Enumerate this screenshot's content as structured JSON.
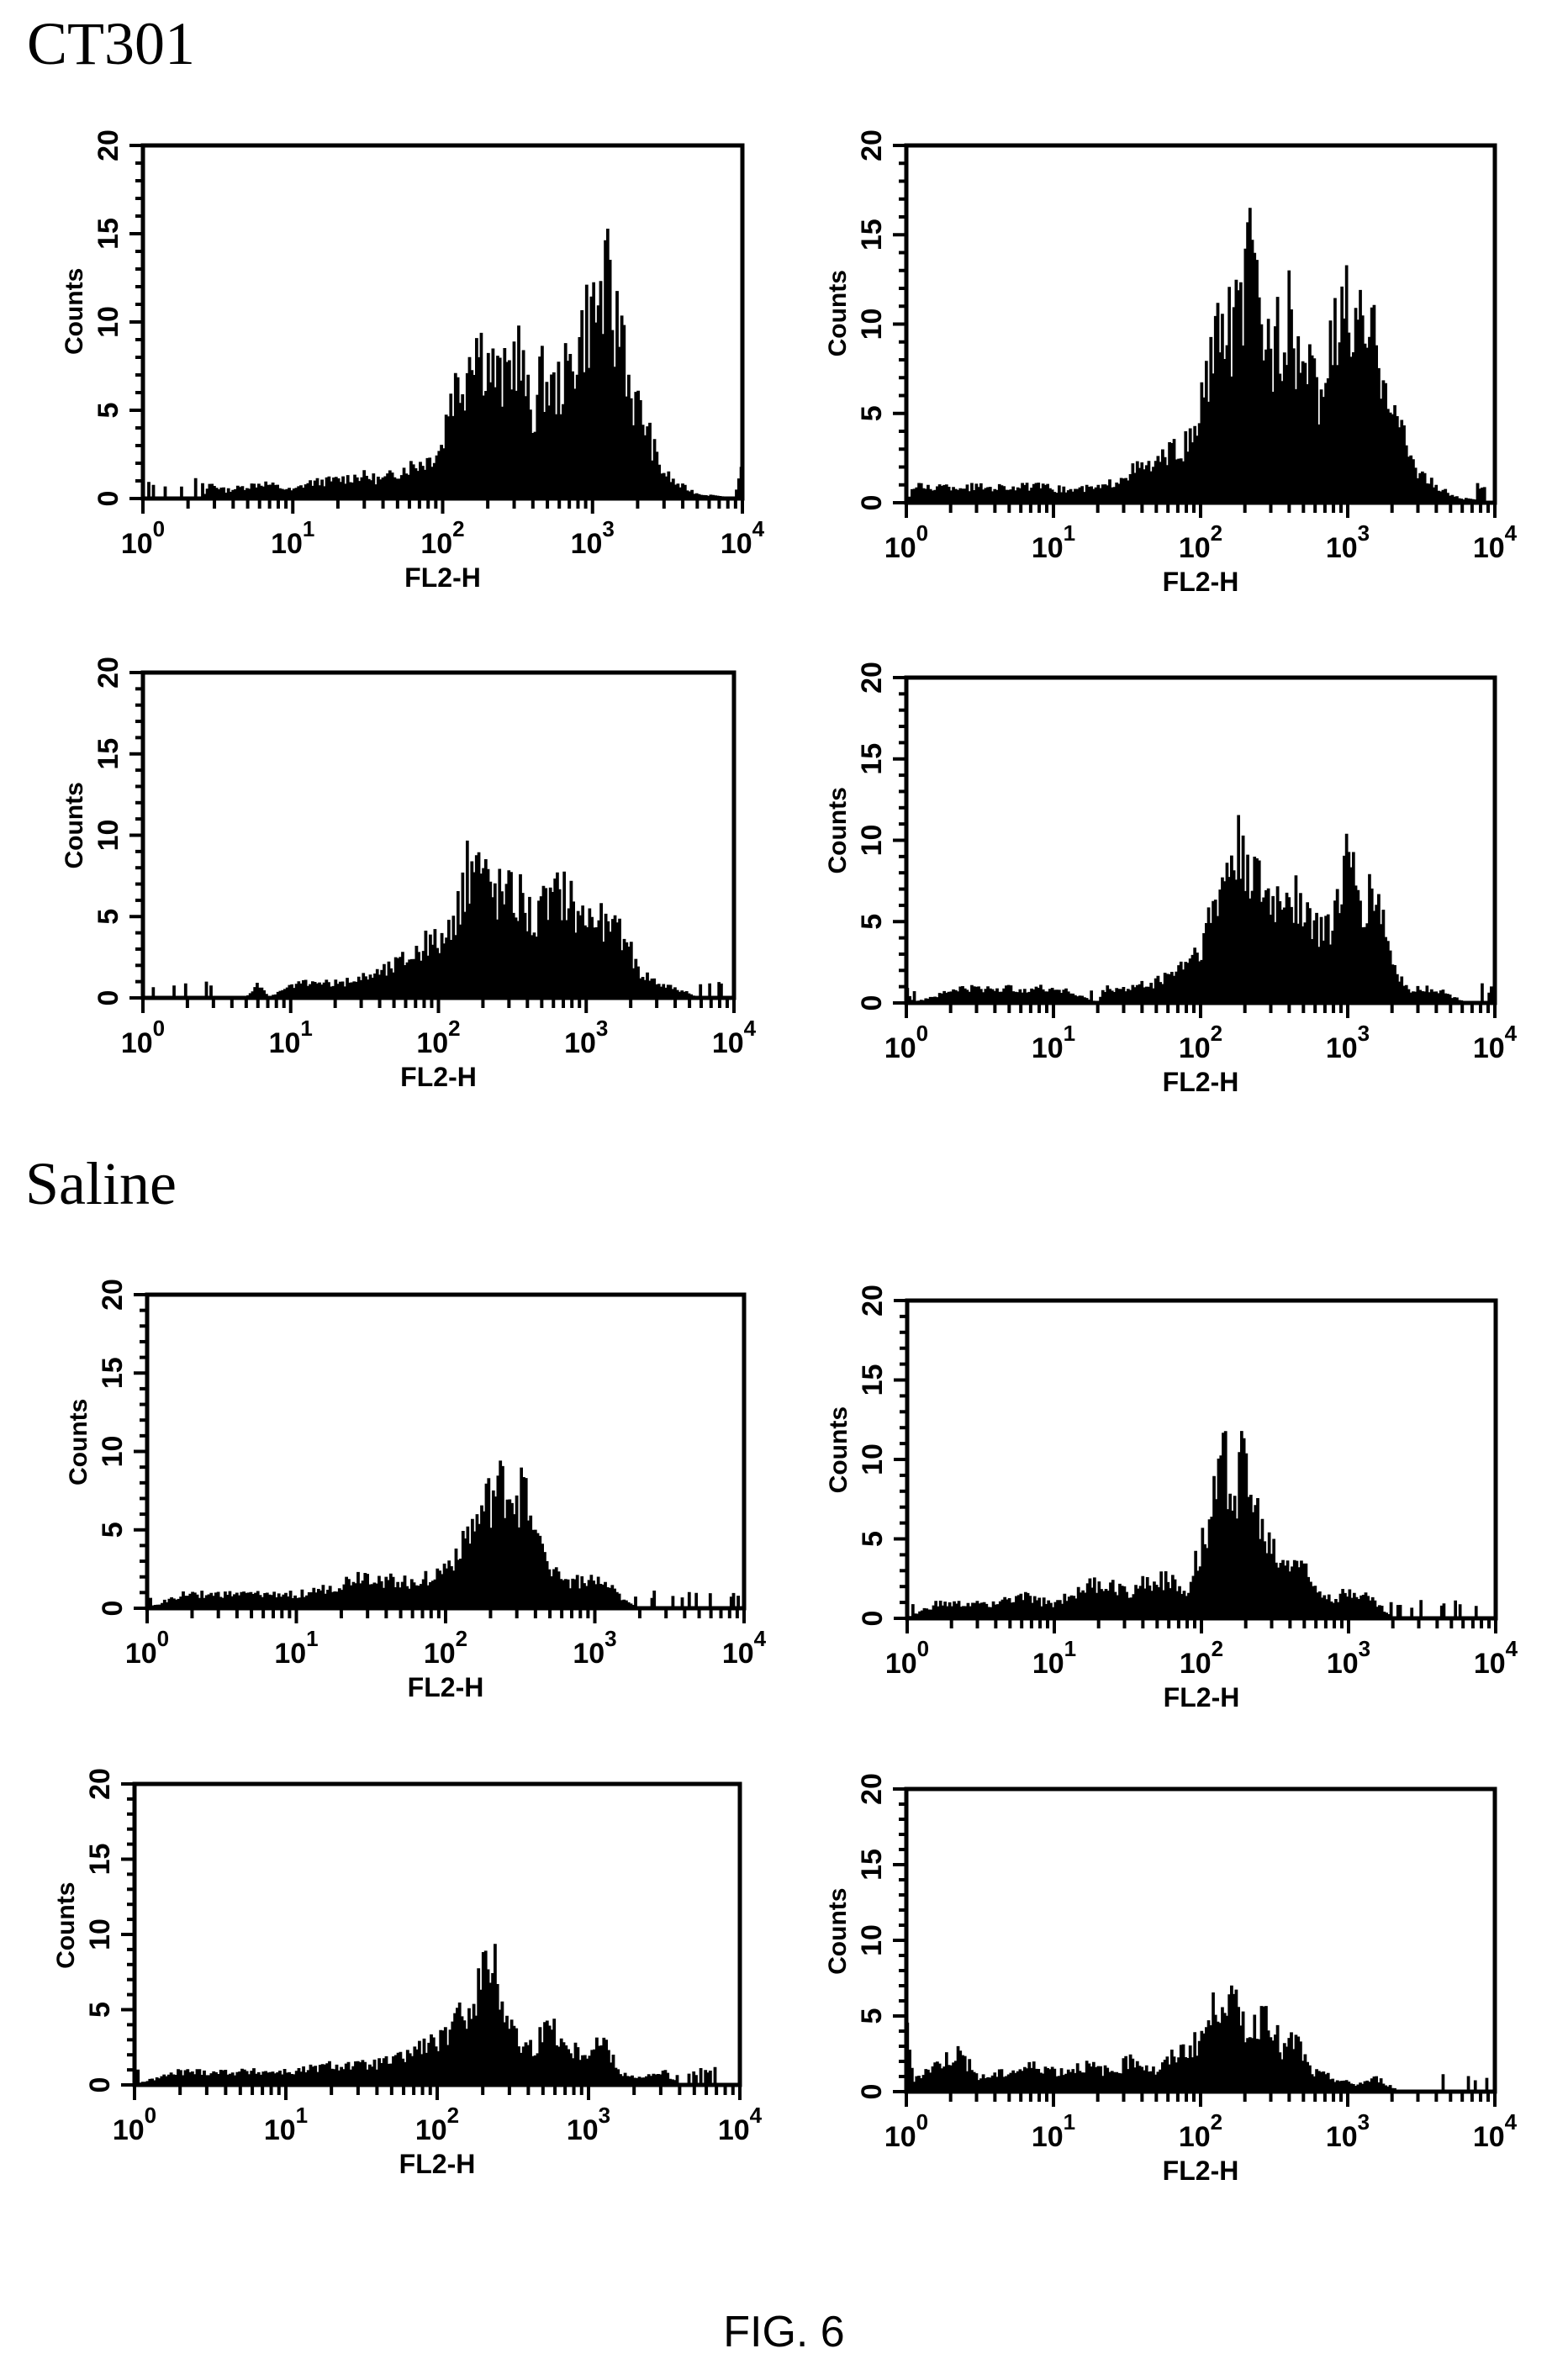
{
  "figure": {
    "caption": "FIG. 6",
    "groups": [
      {
        "title": "CT301"
      },
      {
        "title": "Saline"
      }
    ]
  },
  "axis": {
    "ylabel": "Counts",
    "yticks": [
      "0",
      "5",
      "10",
      "15",
      "20"
    ],
    "xticks": [
      {
        "base": "10",
        "exp": "0"
      },
      {
        "base": "10",
        "exp": "1"
      },
      {
        "base": "10",
        "exp": "2"
      },
      {
        "base": "10",
        "exp": "3"
      },
      {
        "base": "10",
        "exp": "4"
      }
    ]
  },
  "chart_data": [
    {
      "type": "area",
      "group": "CT301",
      "position": "row1-left",
      "title": "",
      "xlabel": "FL2-H",
      "ylabel": "Counts",
      "xscale": "log",
      "xlim": [
        1,
        10000
      ],
      "ylim": [
        0,
        20
      ],
      "xticks": [
        "10^0",
        "10^1",
        "10^2",
        "10^3",
        "10^4"
      ],
      "yticks": [
        0,
        5,
        10,
        15,
        20
      ],
      "peak_x": 1200,
      "peak_count": 14,
      "envelope_log10x_count": [
        [
          0.0,
          0
        ],
        [
          0.4,
          0
        ],
        [
          0.45,
          1
        ],
        [
          0.55,
          0.5
        ],
        [
          0.8,
          1
        ],
        [
          1.0,
          0.5
        ],
        [
          1.1,
          1
        ],
        [
          1.3,
          1.2
        ],
        [
          1.45,
          1.5
        ],
        [
          1.6,
          1.2
        ],
        [
          1.75,
          2
        ],
        [
          1.9,
          2.5
        ],
        [
          2.0,
          3.5
        ],
        [
          2.05,
          7
        ],
        [
          2.15,
          8
        ],
        [
          2.2,
          11
        ],
        [
          2.3,
          9
        ],
        [
          2.4,
          7.5
        ],
        [
          2.5,
          10
        ],
        [
          2.6,
          5
        ],
        [
          2.65,
          8
        ],
        [
          2.75,
          7
        ],
        [
          2.85,
          8.5
        ],
        [
          2.95,
          11.5
        ],
        [
          3.05,
          13
        ],
        [
          3.1,
          14
        ],
        [
          3.15,
          11
        ],
        [
          3.2,
          12
        ],
        [
          3.25,
          7
        ],
        [
          3.35,
          5
        ],
        [
          3.45,
          2
        ],
        [
          3.55,
          1
        ],
        [
          3.7,
          0.3
        ],
        [
          3.95,
          0
        ],
        [
          4.0,
          2
        ]
      ]
    },
    {
      "type": "area",
      "group": "CT301",
      "position": "row1-right",
      "title": "",
      "xlabel": "FL2-H",
      "ylabel": "Counts",
      "xscale": "log",
      "xlim": [
        1,
        10000
      ],
      "ylim": [
        0,
        20
      ],
      "xticks": [
        "10^0",
        "10^1",
        "10^2",
        "10^3",
        "10^4"
      ],
      "yticks": [
        0,
        5,
        10,
        15,
        20
      ],
      "peak_x": 230,
      "peak_count": 16,
      "envelope_log10x_count": [
        [
          0.0,
          0
        ],
        [
          0.05,
          1
        ],
        [
          0.3,
          1
        ],
        [
          0.6,
          1
        ],
        [
          0.9,
          1
        ],
        [
          1.1,
          0.8
        ],
        [
          1.35,
          1
        ],
        [
          1.5,
          2
        ],
        [
          1.7,
          2.5
        ],
        [
          1.85,
          3.5
        ],
        [
          1.95,
          4
        ],
        [
          2.05,
          8.5
        ],
        [
          2.15,
          11
        ],
        [
          2.25,
          12
        ],
        [
          2.35,
          16
        ],
        [
          2.4,
          12
        ],
        [
          2.5,
          10
        ],
        [
          2.6,
          12
        ],
        [
          2.7,
          9
        ],
        [
          2.8,
          7
        ],
        [
          2.9,
          10
        ],
        [
          3.0,
          13
        ],
        [
          3.05,
          11
        ],
        [
          3.15,
          11
        ],
        [
          3.25,
          9
        ],
        [
          3.35,
          5
        ],
        [
          3.45,
          2.5
        ],
        [
          3.6,
          1
        ],
        [
          3.75,
          0.3
        ],
        [
          4.0,
          0
        ]
      ]
    },
    {
      "type": "area",
      "group": "CT301",
      "position": "row2-left",
      "title": "",
      "xlabel": "FL2-H",
      "ylabel": "Counts",
      "xscale": "log",
      "xlim": [
        1,
        10000
      ],
      "ylim": [
        0,
        20
      ],
      "xticks": [
        "10^0",
        "10^1",
        "10^2",
        "10^3",
        "10^4"
      ],
      "yticks": [
        0,
        5,
        10,
        15,
        20
      ],
      "peak_x": 180,
      "peak_count": 10.5,
      "envelope_log10x_count": [
        [
          0.0,
          0
        ],
        [
          0.7,
          0
        ],
        [
          0.78,
          1
        ],
        [
          0.85,
          0
        ],
        [
          1.05,
          1
        ],
        [
          1.2,
          1
        ],
        [
          1.35,
          1
        ],
        [
          1.5,
          1.5
        ],
        [
          1.65,
          2
        ],
        [
          1.8,
          3
        ],
        [
          1.95,
          4
        ],
        [
          2.1,
          4.5
        ],
        [
          2.15,
          7.5
        ],
        [
          2.25,
          10.5
        ],
        [
          2.35,
          8
        ],
        [
          2.45,
          7.5
        ],
        [
          2.55,
          7.5
        ],
        [
          2.65,
          5.5
        ],
        [
          2.75,
          7
        ],
        [
          2.85,
          8
        ],
        [
          2.95,
          6
        ],
        [
          3.05,
          6
        ],
        [
          3.15,
          5
        ],
        [
          3.25,
          4.5
        ],
        [
          3.35,
          2
        ],
        [
          3.5,
          1
        ],
        [
          3.65,
          0.5
        ],
        [
          3.75,
          0
        ],
        [
          4.0,
          0
        ]
      ]
    },
    {
      "type": "area",
      "group": "CT301",
      "position": "row2-right",
      "title": "",
      "xlabel": "FL2-H",
      "ylabel": "Counts",
      "xscale": "log",
      "xlim": [
        1,
        10000
      ],
      "ylim": [
        0,
        20
      ],
      "xticks": [
        "10^0",
        "10^1",
        "10^2",
        "10^3",
        "10^4"
      ],
      "yticks": [
        0,
        5,
        10,
        15,
        20
      ],
      "peak_x": 210,
      "peak_count": 11,
      "envelope_log10x_count": [
        [
          0.0,
          1
        ],
        [
          0.05,
          0
        ],
        [
          0.35,
          1
        ],
        [
          0.5,
          1
        ],
        [
          0.9,
          1
        ],
        [
          1.05,
          1
        ],
        [
          1.3,
          0
        ],
        [
          1.35,
          1
        ],
        [
          1.5,
          1
        ],
        [
          1.7,
          1.5
        ],
        [
          1.85,
          2.5
        ],
        [
          2.0,
          4
        ],
        [
          2.1,
          7
        ],
        [
          2.2,
          10
        ],
        [
          2.3,
          11
        ],
        [
          2.4,
          8
        ],
        [
          2.5,
          7
        ],
        [
          2.6,
          8.5
        ],
        [
          2.7,
          7
        ],
        [
          2.8,
          5
        ],
        [
          2.9,
          6
        ],
        [
          3.0,
          10
        ],
        [
          3.1,
          7
        ],
        [
          3.2,
          8
        ],
        [
          3.3,
          3
        ],
        [
          3.4,
          1
        ],
        [
          3.6,
          1
        ],
        [
          3.8,
          0
        ],
        [
          4.0,
          0
        ]
      ]
    },
    {
      "type": "area",
      "group": "Saline",
      "position": "row3-left",
      "title": "",
      "xlabel": "FL2-H",
      "ylabel": "Counts",
      "xscale": "log",
      "xlim": [
        1,
        10000
      ],
      "ylim": [
        0,
        20
      ],
      "xticks": [
        "10^0",
        "10^1",
        "10^2",
        "10^3",
        "10^4"
      ],
      "yticks": [
        0,
        5,
        10,
        15,
        20
      ],
      "peak_x": 300,
      "peak_count": 9.5,
      "envelope_log10x_count": [
        [
          0.0,
          0
        ],
        [
          0.25,
          1
        ],
        [
          0.5,
          1
        ],
        [
          0.75,
          1
        ],
        [
          1.0,
          1
        ],
        [
          1.25,
          1.5
        ],
        [
          1.45,
          2.5
        ],
        [
          1.6,
          2
        ],
        [
          1.8,
          2
        ],
        [
          1.95,
          2.5
        ],
        [
          2.05,
          3.5
        ],
        [
          2.1,
          5
        ],
        [
          2.2,
          6
        ],
        [
          2.3,
          8
        ],
        [
          2.4,
          9
        ],
        [
          2.5,
          8
        ],
        [
          2.55,
          9.5
        ],
        [
          2.6,
          5
        ],
        [
          2.7,
          3.5
        ],
        [
          2.8,
          2
        ],
        [
          2.9,
          2
        ],
        [
          3.0,
          2
        ],
        [
          3.1,
          1.5
        ],
        [
          3.2,
          0.5
        ],
        [
          3.3,
          0
        ],
        [
          4.0,
          0
        ]
      ]
    },
    {
      "type": "area",
      "group": "Saline",
      "position": "row3-right",
      "title": "",
      "xlabel": "FL2-H",
      "ylabel": "Counts",
      "xscale": "log",
      "xlim": [
        1,
        10000
      ],
      "ylim": [
        0,
        20
      ],
      "xticks": [
        "10^0",
        "10^1",
        "10^2",
        "10^3",
        "10^4"
      ],
      "yticks": [
        0,
        5,
        10,
        15,
        20
      ],
      "peak_x": 200,
      "peak_count": 13,
      "envelope_log10x_count": [
        [
          0.0,
          0
        ],
        [
          0.2,
          1
        ],
        [
          0.5,
          1
        ],
        [
          0.8,
          1.5
        ],
        [
          1.0,
          1
        ],
        [
          1.15,
          2
        ],
        [
          1.3,
          2.5
        ],
        [
          1.5,
          2
        ],
        [
          1.7,
          3
        ],
        [
          1.9,
          2
        ],
        [
          1.95,
          4
        ],
        [
          2.05,
          7
        ],
        [
          2.15,
          11.5
        ],
        [
          2.25,
          10
        ],
        [
          2.3,
          13
        ],
        [
          2.35,
          8
        ],
        [
          2.45,
          5.5
        ],
        [
          2.55,
          4
        ],
        [
          2.65,
          4.5
        ],
        [
          2.75,
          2.5
        ],
        [
          2.9,
          1.5
        ],
        [
          3.05,
          2
        ],
        [
          3.2,
          1
        ],
        [
          3.3,
          0
        ],
        [
          4.0,
          0
        ]
      ]
    },
    {
      "type": "area",
      "group": "Saline",
      "position": "row4-left",
      "title": "",
      "xlabel": "FL2-H",
      "ylabel": "Counts",
      "xscale": "log",
      "xlim": [
        1,
        10000
      ],
      "ylim": [
        0,
        20
      ],
      "xticks": [
        "10^0",
        "10^1",
        "10^2",
        "10^3",
        "10^4"
      ],
      "yticks": [
        0,
        5,
        10,
        15,
        20
      ],
      "peak_x": 230,
      "peak_count": 10,
      "envelope_log10x_count": [
        [
          0.0,
          0
        ],
        [
          0.3,
          1
        ],
        [
          0.5,
          1
        ],
        [
          0.8,
          1
        ],
        [
          1.05,
          1
        ],
        [
          1.3,
          1.5
        ],
        [
          1.55,
          1.5
        ],
        [
          1.75,
          2
        ],
        [
          1.9,
          3
        ],
        [
          2.05,
          3.5
        ],
        [
          2.15,
          5
        ],
        [
          2.25,
          7
        ],
        [
          2.35,
          10
        ],
        [
          2.45,
          6
        ],
        [
          2.55,
          3
        ],
        [
          2.65,
          3
        ],
        [
          2.75,
          5
        ],
        [
          2.85,
          3
        ],
        [
          2.95,
          2.5
        ],
        [
          3.1,
          3.5
        ],
        [
          3.2,
          1
        ],
        [
          3.35,
          0.5
        ],
        [
          3.5,
          1
        ],
        [
          3.6,
          0
        ],
        [
          4.0,
          0
        ]
      ]
    },
    {
      "type": "area",
      "group": "Saline",
      "position": "row4-right",
      "title": "",
      "xlabel": "FL2-H",
      "ylabel": "Counts",
      "xscale": "log",
      "xlim": [
        1,
        10000
      ],
      "ylim": [
        0,
        20
      ],
      "xticks": [
        "10^0",
        "10^1",
        "10^2",
        "10^3",
        "10^4"
      ],
      "yticks": [
        0,
        5,
        10,
        15,
        20
      ],
      "peak_x": 140,
      "peak_count": 8,
      "envelope_log10x_count": [
        [
          0.0,
          5
        ],
        [
          0.05,
          1
        ],
        [
          0.2,
          2
        ],
        [
          0.35,
          3
        ],
        [
          0.5,
          1
        ],
        [
          0.7,
          1.5
        ],
        [
          0.9,
          2
        ],
        [
          1.05,
          1.5
        ],
        [
          1.2,
          2
        ],
        [
          1.4,
          1.5
        ],
        [
          1.55,
          2.5
        ],
        [
          1.7,
          1.5
        ],
        [
          1.85,
          3
        ],
        [
          1.95,
          3.5
        ],
        [
          2.05,
          5
        ],
        [
          2.15,
          8
        ],
        [
          2.25,
          6
        ],
        [
          2.35,
          4.5
        ],
        [
          2.45,
          7
        ],
        [
          2.55,
          3
        ],
        [
          2.65,
          4
        ],
        [
          2.75,
          1.5
        ],
        [
          2.9,
          1
        ],
        [
          3.05,
          0.5
        ],
        [
          3.2,
          1
        ],
        [
          3.35,
          0
        ],
        [
          4.0,
          0
        ]
      ]
    }
  ]
}
